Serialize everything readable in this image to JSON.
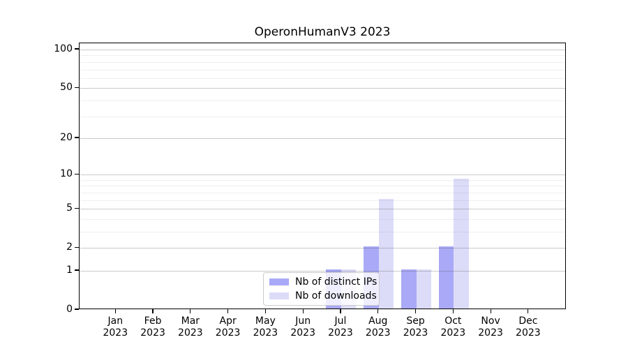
{
  "title": "OperonHumanV3 2023",
  "chart_data": {
    "type": "bar",
    "title": "OperonHumanV3 2023",
    "x_categories": [
      "Jan",
      "Feb",
      "Mar",
      "Apr",
      "May",
      "Jun",
      "Jul",
      "Aug",
      "Sep",
      "Oct",
      "Nov",
      "Dec"
    ],
    "x_year_label": "2023",
    "series": [
      {
        "name": "Nb of distinct IPs",
        "color": "#a9a9f7",
        "values": [
          0,
          0,
          0,
          0,
          0,
          0,
          1,
          2,
          1,
          2,
          0,
          0
        ]
      },
      {
        "name": "Nb of downloads",
        "color": "#dcdcf9",
        "values": [
          0,
          0,
          0,
          0,
          0,
          0,
          1,
          6,
          1,
          9,
          0,
          0
        ]
      }
    ],
    "yscale": "log1p",
    "ylim": [
      0,
      112
    ],
    "yticks_major": [
      0,
      1,
      2,
      5,
      10,
      20,
      50,
      100
    ],
    "yticks_minor": [
      3,
      4,
      6,
      7,
      8,
      9,
      30,
      40,
      60,
      70,
      80,
      90
    ],
    "grid": "horizontal gridlines at major and minor ticks, drawn over bars",
    "legend_position": "inside plot, lower center-left"
  },
  "colors": {
    "bar_distinct_ips": "#a9a9f7",
    "bar_downloads": "#dcdcf9",
    "spine": "#000000",
    "grid_major": "rgba(80,80,80,0.30)",
    "grid_minor": "rgba(120,120,120,0.12)",
    "legend_border": "#cccccc",
    "legend_background": "rgba(255,255,255,0.8)",
    "text": "#000000",
    "figure_background": "#ffffff"
  }
}
